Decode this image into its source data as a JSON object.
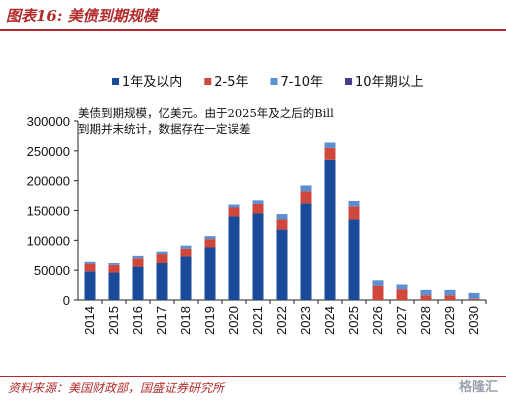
{
  "figure": {
    "title": "图表16: 美债到期规模",
    "source": "资料来源：美国财政部，国盛证券研究所",
    "watermark": "格隆汇"
  },
  "chart_data": {
    "type": "bar",
    "stacked": true,
    "annotation_lines": [
      "美债到期规模，亿美元。由于2025年及之后的Bill",
      "到期并未统计，数据存在一定误差"
    ],
    "categories": [
      "2014",
      "2015",
      "2016",
      "2017",
      "2018",
      "2019",
      "2020",
      "2021",
      "2022",
      "2023",
      "2024",
      "2025",
      "2026",
      "2027",
      "2028",
      "2029",
      "2030"
    ],
    "ylim": [
      0,
      300000
    ],
    "yticks": [
      0,
      50000,
      100000,
      150000,
      200000,
      250000,
      300000
    ],
    "ytick_labels": [
      "0",
      "50000",
      "100000",
      "150000",
      "200000",
      "250000",
      "300000"
    ],
    "legend_position": "top",
    "grid": false,
    "series": [
      {
        "name": "1年及以内",
        "color": "#1a4a9a",
        "values": [
          48000,
          46000,
          56000,
          62000,
          73000,
          88000,
          140000,
          145000,
          118000,
          162000,
          235000,
          135000,
          0,
          0,
          0,
          0,
          0
        ]
      },
      {
        "name": "2-5年",
        "color": "#d0483c",
        "values": [
          13000,
          13000,
          14000,
          15000,
          13000,
          14000,
          15000,
          16000,
          17000,
          20000,
          20000,
          22000,
          24000,
          18000,
          8000,
          8000,
          2000
        ]
      },
      {
        "name": "7-10年",
        "color": "#5b8fd0",
        "values": [
          3000,
          3000,
          4000,
          4000,
          5000,
          5000,
          5000,
          6000,
          9000,
          10000,
          9000,
          9000,
          9000,
          8000,
          9000,
          9000,
          10000
        ]
      },
      {
        "name": "10年期以上",
        "color": "#4a3b8a",
        "values": [
          0,
          0,
          0,
          0,
          0,
          0,
          0,
          0,
          0,
          0,
          0,
          0,
          0,
          0,
          0,
          0,
          0
        ]
      }
    ]
  }
}
